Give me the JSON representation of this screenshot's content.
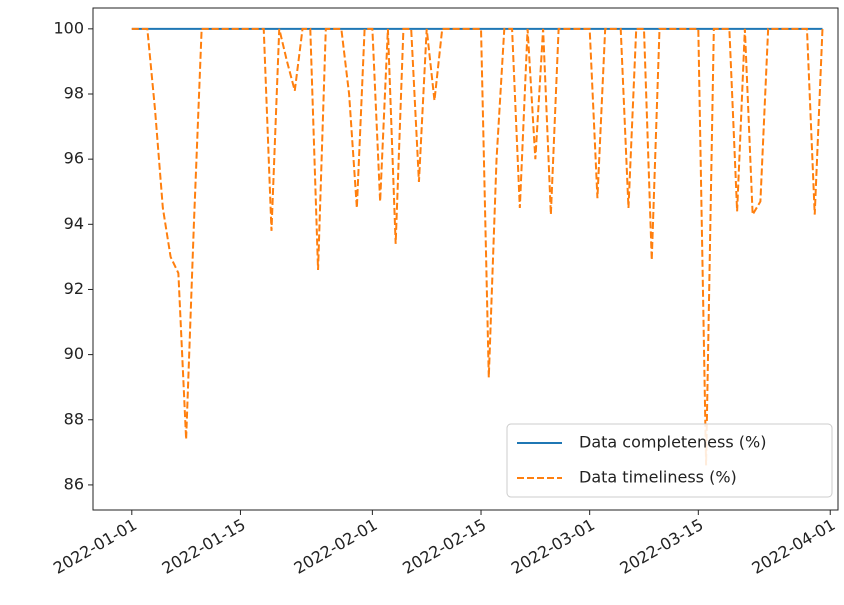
{
  "chart_data": {
    "type": "line",
    "x": [
      "2022-01-01",
      "2022-01-02",
      "2022-01-03",
      "2022-01-04",
      "2022-01-05",
      "2022-01-06",
      "2022-01-07",
      "2022-01-08",
      "2022-01-09",
      "2022-01-10",
      "2022-01-11",
      "2022-01-12",
      "2022-01-13",
      "2022-01-14",
      "2022-01-15",
      "2022-01-16",
      "2022-01-17",
      "2022-01-18",
      "2022-01-19",
      "2022-01-20",
      "2022-01-21",
      "2022-01-22",
      "2022-01-23",
      "2022-01-24",
      "2022-01-25",
      "2022-01-26",
      "2022-01-27",
      "2022-01-28",
      "2022-01-29",
      "2022-01-30",
      "2022-01-31",
      "2022-02-01",
      "2022-02-02",
      "2022-02-03",
      "2022-02-04",
      "2022-02-05",
      "2022-02-06",
      "2022-02-07",
      "2022-02-08",
      "2022-02-09",
      "2022-02-10",
      "2022-02-11",
      "2022-02-12",
      "2022-02-13",
      "2022-02-14",
      "2022-02-15",
      "2022-02-16",
      "2022-02-17",
      "2022-02-18",
      "2022-02-19",
      "2022-02-20",
      "2022-02-21",
      "2022-02-22",
      "2022-02-23",
      "2022-02-24",
      "2022-02-25",
      "2022-02-26",
      "2022-02-27",
      "2022-02-28",
      "2022-03-01",
      "2022-03-02",
      "2022-03-03",
      "2022-03-04",
      "2022-03-05",
      "2022-03-06",
      "2022-03-07",
      "2022-03-08",
      "2022-03-09",
      "2022-03-10",
      "2022-03-11",
      "2022-03-12",
      "2022-03-13",
      "2022-03-14",
      "2022-03-15",
      "2022-03-16",
      "2022-03-17",
      "2022-03-18",
      "2022-03-19",
      "2022-03-20",
      "2022-03-21",
      "2022-03-22",
      "2022-03-23",
      "2022-03-24",
      "2022-03-25",
      "2022-03-26",
      "2022-03-27",
      "2022-03-28",
      "2022-03-29",
      "2022-03-30",
      "2022-03-31"
    ],
    "series": [
      {
        "name": "Data completeness (%)",
        "color": "#1f77b4",
        "linestyle": "solid",
        "values": [
          100,
          100,
          100,
          100,
          100,
          100,
          100,
          100,
          100,
          100,
          100,
          100,
          100,
          100,
          100,
          100,
          100,
          100,
          100,
          100,
          100,
          100,
          100,
          100,
          100,
          100,
          100,
          100,
          100,
          100,
          100,
          100,
          100,
          100,
          100,
          100,
          100,
          100,
          100,
          100,
          100,
          100,
          100,
          100,
          100,
          100,
          100,
          100,
          100,
          100,
          100,
          100,
          100,
          100,
          100,
          100,
          100,
          100,
          100,
          100,
          100,
          100,
          100,
          100,
          100,
          100,
          100,
          100,
          100,
          100,
          100,
          100,
          100,
          100,
          100,
          100,
          100,
          100,
          100,
          100,
          100,
          100,
          100,
          100,
          100,
          100,
          100,
          100,
          100,
          100
        ]
      },
      {
        "name": "Data timeliness (%)",
        "color": "#ff7f0e",
        "linestyle": "dashed",
        "values": [
          100,
          100,
          100,
          97.5,
          94.5,
          93,
          92.5,
          87.4,
          94,
          100,
          100,
          100,
          100,
          100,
          100,
          100,
          100,
          100,
          93.8,
          100,
          99,
          98.1,
          100,
          100,
          92.6,
          100,
          100,
          100,
          98,
          94.5,
          100,
          100,
          94.7,
          100,
          93.4,
          100,
          100,
          95.3,
          100,
          97.8,
          100,
          100,
          100,
          100,
          100,
          100,
          89.3,
          96,
          100,
          100,
          94.5,
          100,
          96,
          100,
          94.3,
          100,
          100,
          100,
          100,
          100,
          94.8,
          100,
          100,
          100,
          94.5,
          100,
          100,
          92.9,
          100,
          100,
          100,
          100,
          100,
          100,
          86.6,
          100,
          100,
          100,
          94.4,
          100,
          94.3,
          94.7,
          100,
          100,
          100,
          100,
          100,
          100,
          94.3,
          100
        ]
      }
    ],
    "xlim": [
      "2021-12-27",
      "2022-04-02"
    ],
    "xticks": [
      "2022-01-01",
      "2022-01-15",
      "2022-02-01",
      "2022-02-15",
      "2022-03-01",
      "2022-03-15",
      "2022-04-01"
    ],
    "ylim": [
      85.23,
      100.64
    ],
    "yticks": [
      86,
      88,
      90,
      92,
      94,
      96,
      98,
      100
    ],
    "legend": "lower right"
  }
}
